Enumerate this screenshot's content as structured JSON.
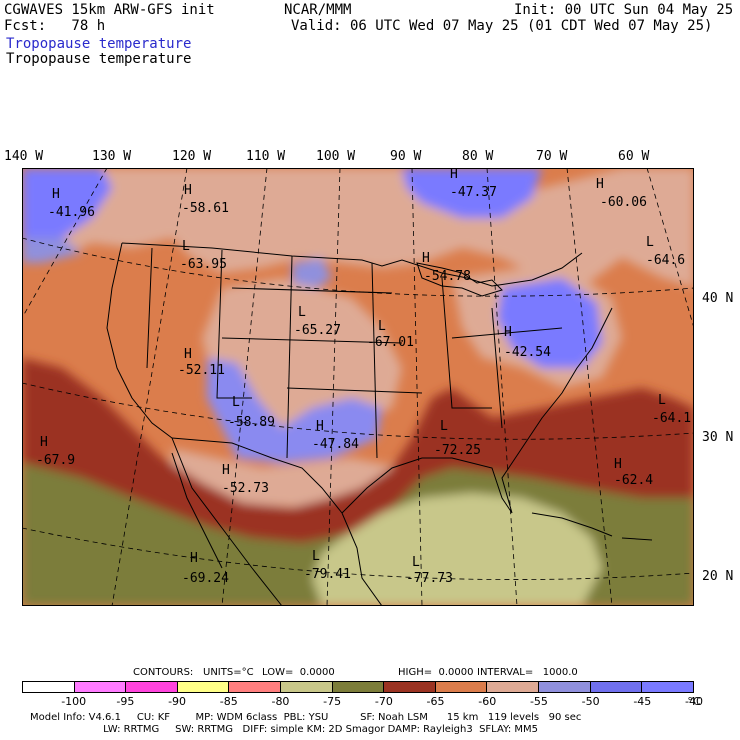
{
  "header": {
    "model": "CGWAVES 15km ARW-GFS init",
    "fcst": "Fcst:   78 h",
    "field_blue": "Tropopause temperature",
    "field": "Tropopause temperature",
    "center": "NCAR/MMM",
    "init": "Init: 00 UTC Sun 04 May 25",
    "valid": "Valid: 06 UTC Wed 07 May 25 (01 CDT Wed 07 May 25)"
  },
  "longitudes": [
    "140 W",
    "130 W",
    "120 W",
    "110 W",
    "100 W",
    "90 W",
    "80 W",
    "70 W",
    "60 W"
  ],
  "latitudes": [
    "40 N",
    "30 N",
    "20 N"
  ],
  "map_labels": [
    {
      "type": "H",
      "value": "-41.96"
    },
    {
      "type": "H",
      "value": "-58.61"
    },
    {
      "type": "L",
      "value": "-63.95"
    },
    {
      "type": "H",
      "value": "-47.37"
    },
    {
      "type": "H",
      "value": "-60.06"
    },
    {
      "type": "L",
      "value": "-64.6"
    },
    {
      "type": "H",
      "value": "-54.78"
    },
    {
      "type": "L",
      "value": "-65.27"
    },
    {
      "type": "L",
      "value": "-67.01"
    },
    {
      "type": "H",
      "value": "-42.54"
    },
    {
      "type": "H",
      "value": "-52.11"
    },
    {
      "type": "L",
      "value": "-58.89"
    },
    {
      "type": "H",
      "value": "-47.84"
    },
    {
      "type": "L",
      "value": "-72.25"
    },
    {
      "type": "L",
      "value": "-64.1"
    },
    {
      "type": "H",
      "value": "-67.9"
    },
    {
      "type": "H",
      "value": "-52.73"
    },
    {
      "type": "H",
      "value": "-62.4"
    },
    {
      "type": "H",
      "value": "-69.24"
    },
    {
      "type": "L",
      "value": "-79.41"
    },
    {
      "type": "L",
      "value": "-77.73"
    }
  ],
  "contour_info": {
    "contours": "CONTOURS:",
    "units": "UNITS=°C",
    "low": "LOW=  0.0000",
    "high": "HIGH=  0.0000",
    "interval": "INTERVAL=   1000.0"
  },
  "colorbar": {
    "colors": [
      "#ffffff",
      "#ff7bff",
      "#ff44dd",
      "#ffff88",
      "#ff7f7f",
      "#c8c78a",
      "#7c7d3a",
      "#9b3322",
      "#db7d4c",
      "#deaa95",
      "#9090dd",
      "#7070ee",
      "#7a7aff"
    ],
    "ticks": [
      "-100",
      "-95",
      "-90",
      "-85",
      "-80",
      "-75",
      "-70",
      "-65",
      "-60",
      "-55",
      "-50",
      "-45",
      "-40"
    ],
    "unit": "°C"
  },
  "footer": {
    "line1": "Model Info: V4.6.1     CU: KF        MP: WDM 6class  PBL: YSU          SF: Noah LSM      15 km   119 levels   90 sec",
    "line2": "                       LW: RRTMG     SW: RRTMG   DIFF: simple KM: 2D Smagor DAMP: Rayleigh3  SFLAY: MM5"
  }
}
